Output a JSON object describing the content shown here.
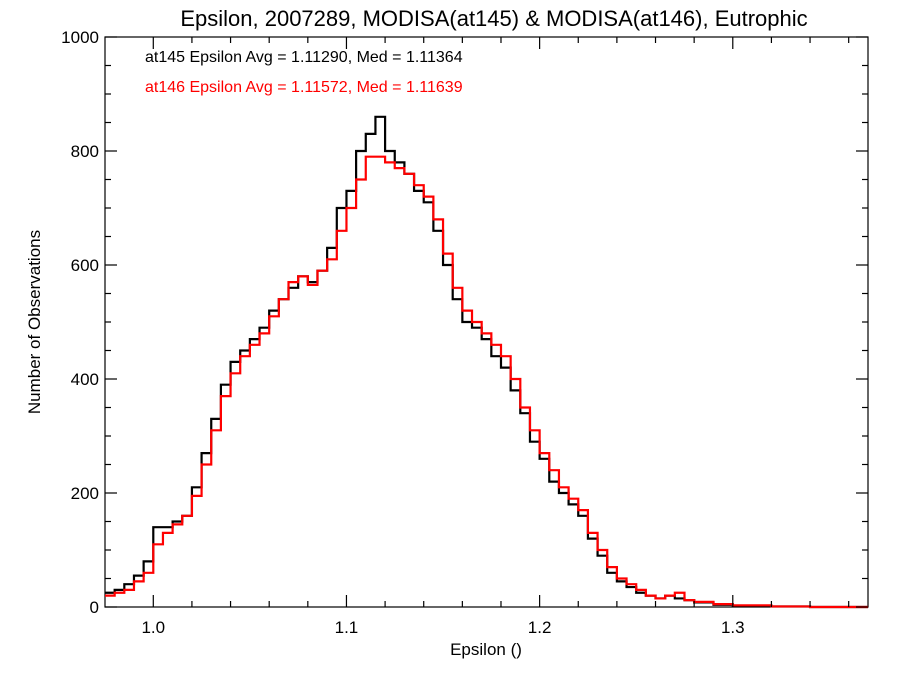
{
  "chart_data": {
    "type": "histogram-step",
    "title": "Epsilon, 2007289, MODISA(at145) & MODISA(at146), Eutrophic",
    "xlabel": "Epsilon ()",
    "ylabel": "Number of Observations",
    "xlim": [
      0.975,
      1.37
    ],
    "ylim": [
      0,
      1000
    ],
    "x_ticks": [
      1.0,
      1.1,
      1.2,
      1.3
    ],
    "x_tick_labels": [
      "1.0",
      "1.1",
      "1.2",
      "1.3"
    ],
    "y_ticks": [
      0,
      200,
      400,
      600,
      800,
      1000
    ],
    "y_tick_labels": [
      "0",
      "200",
      "400",
      "600",
      "800",
      "1000"
    ],
    "grid": false,
    "annotations": [
      {
        "text": "at145 Epsilon Avg = 1.11290, Med = 1.11364",
        "color": "#000000"
      },
      {
        "text": "at146 Epsilon Avg = 1.11572, Med = 1.11639",
        "color": "#ff0000"
      }
    ],
    "series": [
      {
        "color": "#000000",
        "points": [
          [
            0.975,
            25
          ],
          [
            0.98,
            30
          ],
          [
            0.985,
            40
          ],
          [
            0.99,
            55
          ],
          [
            0.995,
            80
          ],
          [
            1.0,
            140
          ],
          [
            1.005,
            140
          ],
          [
            1.01,
            150
          ],
          [
            1.015,
            160
          ],
          [
            1.02,
            210
          ],
          [
            1.025,
            270
          ],
          [
            1.03,
            330
          ],
          [
            1.035,
            390
          ],
          [
            1.04,
            430
          ],
          [
            1.045,
            450
          ],
          [
            1.05,
            470
          ],
          [
            1.055,
            490
          ],
          [
            1.06,
            520
          ],
          [
            1.065,
            540
          ],
          [
            1.07,
            560
          ],
          [
            1.075,
            580
          ],
          [
            1.08,
            570
          ],
          [
            1.085,
            590
          ],
          [
            1.09,
            630
          ],
          [
            1.095,
            700
          ],
          [
            1.1,
            730
          ],
          [
            1.105,
            800
          ],
          [
            1.11,
            830
          ],
          [
            1.115,
            860
          ],
          [
            1.12,
            800
          ],
          [
            1.125,
            780
          ],
          [
            1.13,
            760
          ],
          [
            1.135,
            730
          ],
          [
            1.14,
            710
          ],
          [
            1.145,
            660
          ],
          [
            1.15,
            600
          ],
          [
            1.155,
            540
          ],
          [
            1.16,
            500
          ],
          [
            1.165,
            490
          ],
          [
            1.17,
            470
          ],
          [
            1.175,
            440
          ],
          [
            1.18,
            420
          ],
          [
            1.185,
            380
          ],
          [
            1.19,
            340
          ],
          [
            1.195,
            290
          ],
          [
            1.2,
            260
          ],
          [
            1.205,
            220
          ],
          [
            1.21,
            200
          ],
          [
            1.215,
            180
          ],
          [
            1.22,
            160
          ],
          [
            1.225,
            120
          ],
          [
            1.23,
            90
          ],
          [
            1.235,
            60
          ],
          [
            1.24,
            45
          ],
          [
            1.245,
            35
          ],
          [
            1.25,
            25
          ],
          [
            1.255,
            20
          ],
          [
            1.26,
            15
          ],
          [
            1.265,
            20
          ],
          [
            1.27,
            15
          ],
          [
            1.275,
            12
          ],
          [
            1.28,
            8
          ],
          [
            1.29,
            4
          ],
          [
            1.3,
            2
          ],
          [
            1.32,
            1
          ],
          [
            1.34,
            0
          ],
          [
            1.37,
            0
          ]
        ]
      },
      {
        "color": "#ff0000",
        "points": [
          [
            0.975,
            20
          ],
          [
            0.98,
            25
          ],
          [
            0.985,
            30
          ],
          [
            0.99,
            45
          ],
          [
            0.995,
            60
          ],
          [
            1.0,
            110
          ],
          [
            1.005,
            130
          ],
          [
            1.01,
            145
          ],
          [
            1.015,
            160
          ],
          [
            1.02,
            195
          ],
          [
            1.025,
            250
          ],
          [
            1.03,
            310
          ],
          [
            1.035,
            370
          ],
          [
            1.04,
            410
          ],
          [
            1.045,
            440
          ],
          [
            1.05,
            460
          ],
          [
            1.055,
            480
          ],
          [
            1.06,
            510
          ],
          [
            1.065,
            540
          ],
          [
            1.07,
            570
          ],
          [
            1.075,
            580
          ],
          [
            1.08,
            565
          ],
          [
            1.085,
            590
          ],
          [
            1.09,
            610
          ],
          [
            1.095,
            660
          ],
          [
            1.1,
            700
          ],
          [
            1.105,
            750
          ],
          [
            1.11,
            790
          ],
          [
            1.115,
            790
          ],
          [
            1.12,
            780
          ],
          [
            1.125,
            770
          ],
          [
            1.13,
            760
          ],
          [
            1.135,
            740
          ],
          [
            1.14,
            720
          ],
          [
            1.145,
            680
          ],
          [
            1.15,
            620
          ],
          [
            1.155,
            560
          ],
          [
            1.16,
            520
          ],
          [
            1.165,
            500
          ],
          [
            1.17,
            480
          ],
          [
            1.175,
            460
          ],
          [
            1.18,
            440
          ],
          [
            1.185,
            400
          ],
          [
            1.19,
            350
          ],
          [
            1.195,
            310
          ],
          [
            1.2,
            270
          ],
          [
            1.205,
            240
          ],
          [
            1.21,
            210
          ],
          [
            1.215,
            190
          ],
          [
            1.22,
            170
          ],
          [
            1.225,
            130
          ],
          [
            1.23,
            100
          ],
          [
            1.235,
            70
          ],
          [
            1.24,
            50
          ],
          [
            1.245,
            40
          ],
          [
            1.25,
            30
          ],
          [
            1.255,
            20
          ],
          [
            1.26,
            15
          ],
          [
            1.265,
            20
          ],
          [
            1.27,
            25
          ],
          [
            1.275,
            12
          ],
          [
            1.28,
            9
          ],
          [
            1.29,
            5
          ],
          [
            1.3,
            3
          ],
          [
            1.32,
            1
          ],
          [
            1.34,
            0
          ],
          [
            1.37,
            0
          ]
        ]
      }
    ]
  }
}
